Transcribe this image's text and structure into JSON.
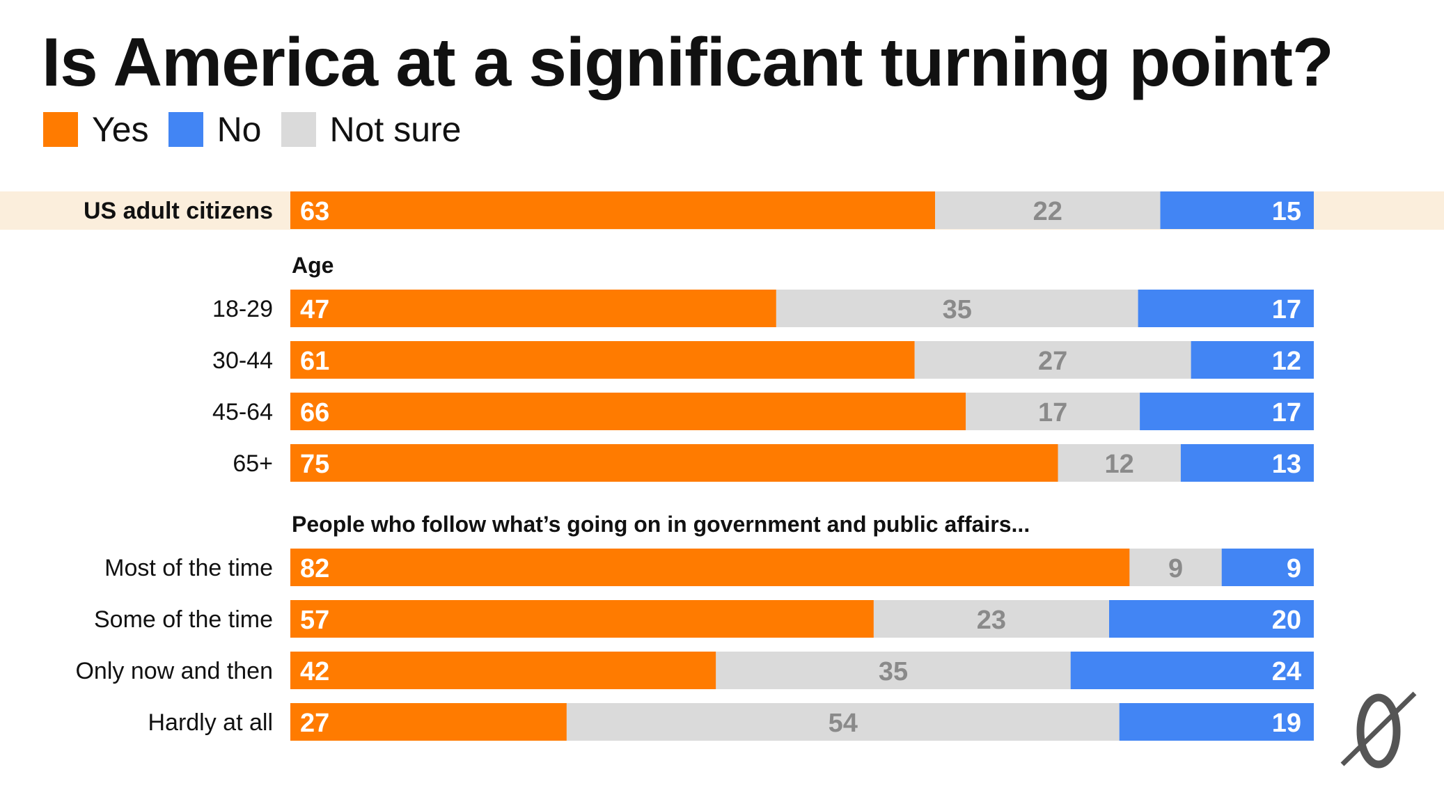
{
  "chart_data": {
    "type": "bar",
    "orientation": "horizontal",
    "stacked": true,
    "title": "Is America at a significant turning point?",
    "legend": [
      {
        "key": "yes",
        "label": "Yes",
        "color": "#FF7B00"
      },
      {
        "key": "no",
        "label": "No",
        "color": "#4285F4"
      },
      {
        "key": "not_sure",
        "label": "Not sure",
        "color": "#DADADA"
      }
    ],
    "segment_order": [
      "yes",
      "not_sure",
      "no"
    ],
    "xlim": [
      0,
      100
    ],
    "highlight_color": "#FBEEDC",
    "groups": [
      {
        "label": "",
        "highlight": true,
        "rows": [
          {
            "label": "US adult citizens",
            "yes": 63,
            "not_sure": 22,
            "no": 15
          }
        ]
      },
      {
        "label": "Age",
        "rows": [
          {
            "label": "18-29",
            "yes": 47,
            "not_sure": 35,
            "no": 17
          },
          {
            "label": "30-44",
            "yes": 61,
            "not_sure": 27,
            "no": 12
          },
          {
            "label": "45-64",
            "yes": 66,
            "not_sure": 17,
            "no": 17
          },
          {
            "label": "65+",
            "yes": 75,
            "not_sure": 12,
            "no": 13
          }
        ]
      },
      {
        "label": "People who follow what’s going on in government and public affairs...",
        "rows": [
          {
            "label": "Most of the time",
            "yes": 82,
            "not_sure": 9,
            "no": 9
          },
          {
            "label": "Some of the time",
            "yes": 57,
            "not_sure": 23,
            "no": 20
          },
          {
            "label": "Only now and then",
            "yes": 42,
            "not_sure": 35,
            "no": 24
          },
          {
            "label": "Hardly at all",
            "yes": 27,
            "not_sure": 54,
            "no": 19
          }
        ]
      }
    ]
  }
}
